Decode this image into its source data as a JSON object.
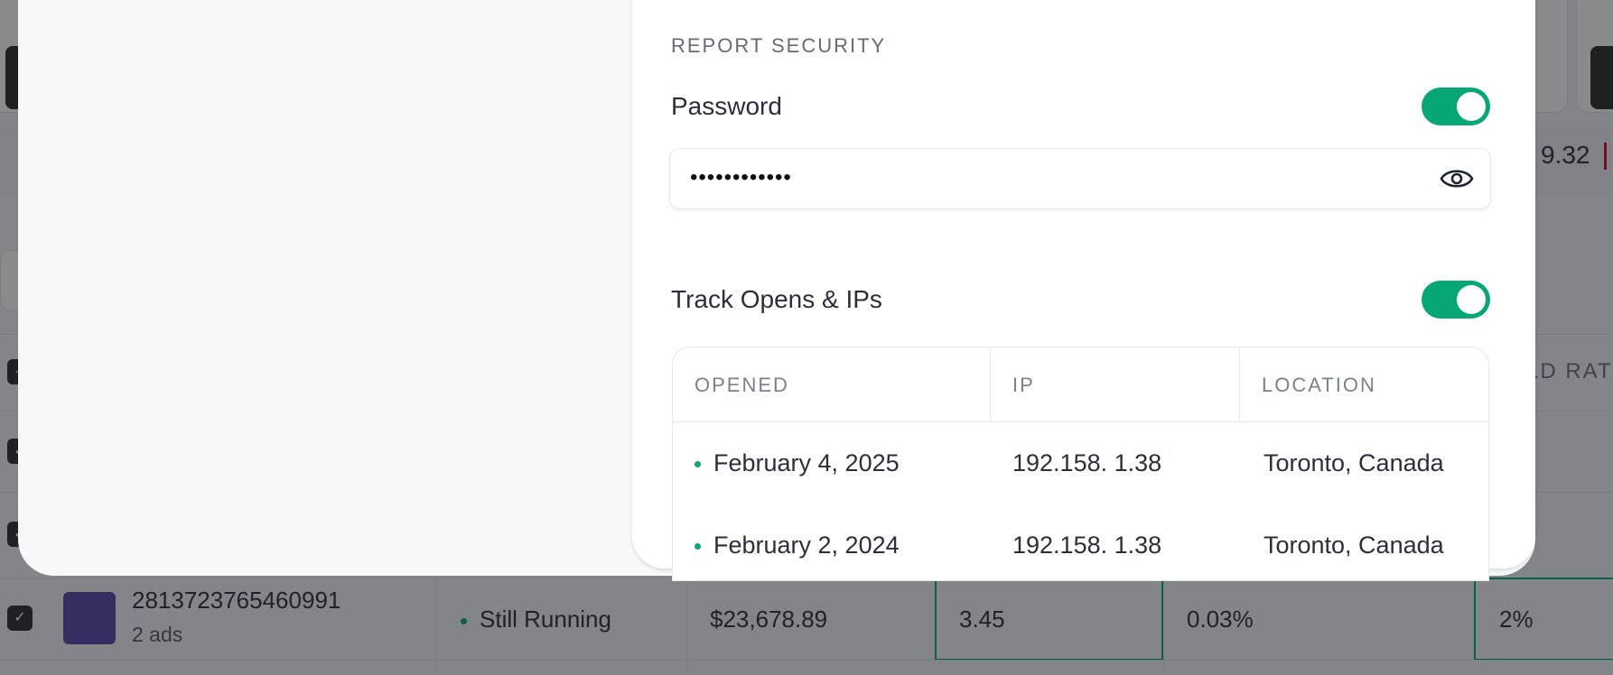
{
  "background": {
    "summary_value": "9.32",
    "column_header_partial": "LD RAT",
    "row": {
      "id": "2813723765460991",
      "ads": "2 ads",
      "status": "Still Running",
      "spend": "$23,678.89",
      "roas": "3.45",
      "ctr": "0.03%",
      "rate": "2%"
    }
  },
  "report_security": {
    "title": "REPORT SECURITY",
    "password": {
      "label": "Password",
      "enabled": true,
      "value": "••••••••••••"
    },
    "track": {
      "label": "Track Opens & IPs",
      "enabled": true
    },
    "table": {
      "headers": [
        "OPENED",
        "IP",
        "LOCATION"
      ],
      "rows": [
        {
          "opened": "February 4, 2025",
          "ip": "192.158. 1.38",
          "location": "Toronto, Canada"
        },
        {
          "opened": "February 2, 2024",
          "ip": "192.158. 1.38",
          "location": "Toronto, Canada"
        }
      ]
    }
  },
  "colors": {
    "accent": "#07a677",
    "text": "#2a2f3b",
    "muted": "#646b78"
  }
}
